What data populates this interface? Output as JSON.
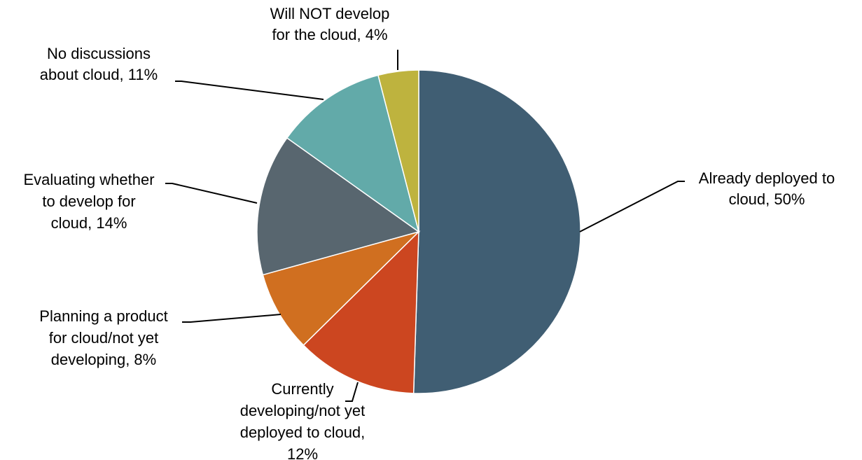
{
  "chart_data": {
    "type": "pie",
    "title": "",
    "start_angle_deg": 0,
    "direction": "clockwise",
    "slices": [
      {
        "label": "Already deployed to cloud, 50%",
        "value": 50,
        "color": "#405e73"
      },
      {
        "label": "Currently developing/not yet deployed to cloud, 12%",
        "value": 12,
        "color": "#cc4620"
      },
      {
        "label": "Planning a product for cloud/not yet developing, 8%",
        "value": 8,
        "color": "#d06f20"
      },
      {
        "label": "Evaluating whether to develop for cloud, 14%",
        "value": 14,
        "color": "#58666f"
      },
      {
        "label": "No discussions about cloud, 11%",
        "value": 11,
        "color": "#62aaa9"
      },
      {
        "label": "Will NOT develop for the cloud, 4%",
        "value": 4,
        "color": "#beb33e"
      }
    ]
  }
}
